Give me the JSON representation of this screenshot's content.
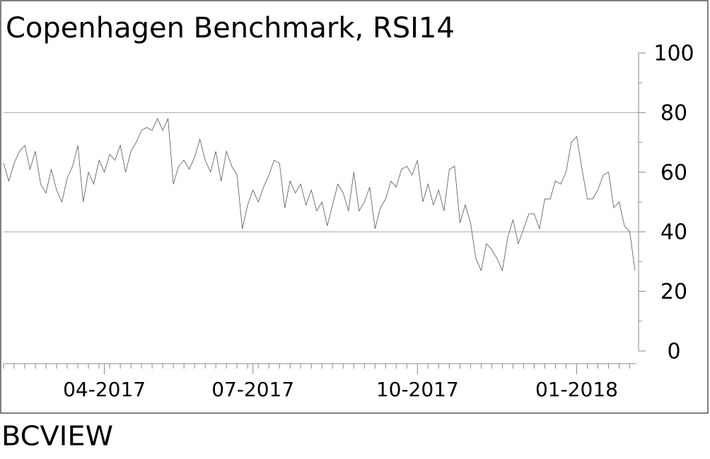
{
  "chart_data": {
    "type": "line",
    "title": "Copenhagen Benchmark, RSI14",
    "footer": "BCVIEW",
    "categories": [
      null,
      null,
      null,
      null,
      null,
      null,
      null,
      null,
      null,
      null,
      null,
      null,
      null,
      null,
      null,
      null,
      null,
      null,
      null,
      "04-2017",
      null,
      null,
      null,
      null,
      null,
      null,
      null,
      null,
      null,
      null,
      null,
      null,
      null,
      null,
      null,
      null,
      null,
      null,
      null,
      null,
      null,
      null,
      null,
      null,
      null,
      null,
      null,
      "07-2017",
      null,
      null,
      null,
      null,
      null,
      null,
      null,
      null,
      null,
      null,
      null,
      null,
      null,
      null,
      null,
      null,
      null,
      null,
      null,
      null,
      null,
      null,
      null,
      null,
      null,
      null,
      null,
      null,
      null,
      null,
      "10-2017",
      null,
      null,
      null,
      null,
      null,
      null,
      null,
      null,
      null,
      null,
      null,
      null,
      null,
      null,
      null,
      null,
      null,
      null,
      null,
      null,
      null,
      null,
      null,
      null,
      null,
      null,
      null,
      null,
      null,
      "01-2018",
      null,
      null,
      null,
      null,
      null,
      null,
      null,
      null,
      null,
      null,
      null
    ],
    "series": [
      {
        "name": "RSI14",
        "color": "#555555",
        "values": [
          63,
          57,
          63,
          67,
          69,
          61,
          67,
          56,
          53,
          61,
          54,
          50,
          58,
          62,
          69,
          50,
          60,
          56,
          64,
          60,
          66,
          64,
          69,
          60,
          67,
          70,
          74,
          75,
          74,
          78,
          74,
          78,
          56,
          62,
          64,
          61,
          65,
          71,
          64,
          60,
          67,
          57,
          67,
          62,
          59,
          41,
          49,
          54,
          50,
          55,
          59,
          64,
          63,
          48,
          57,
          53,
          56,
          49,
          54,
          47,
          50,
          42,
          49,
          56,
          53,
          47,
          60,
          47,
          50,
          55,
          41,
          48,
          51,
          57,
          55,
          61,
          62,
          59,
          64,
          50,
          56,
          49,
          54,
          47,
          61,
          62,
          43,
          49,
          43,
          31,
          27,
          36,
          34,
          31,
          27,
          38,
          44,
          36,
          41,
          46,
          46,
          41,
          51,
          51,
          57,
          56,
          60,
          70,
          72,
          61,
          51,
          51,
          54,
          59,
          60,
          48,
          50,
          42,
          40,
          27
        ]
      }
    ],
    "ylim": [
      0,
      100
    ],
    "yticks": [
      0,
      20,
      40,
      60,
      80,
      100
    ],
    "hlines": [
      40,
      80
    ],
    "title_color": "#ee0000"
  }
}
